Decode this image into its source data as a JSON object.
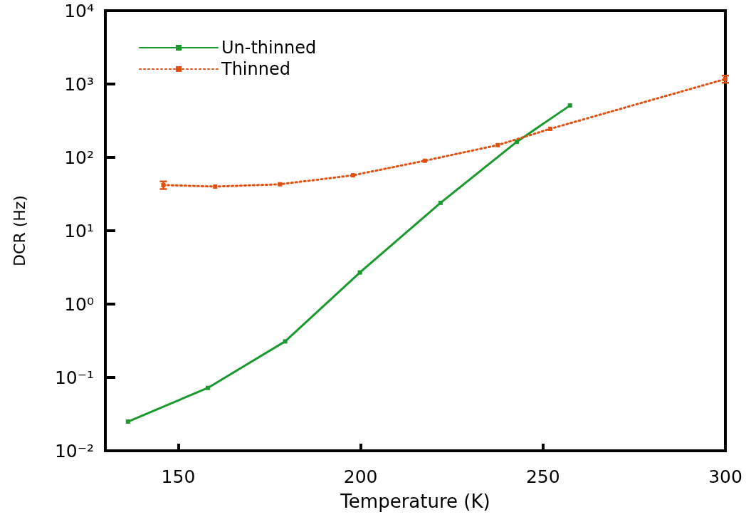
{
  "chart_data": {
    "type": "line",
    "xlabel": "Temperature (K)",
    "ylabel": "DCR (Hz)",
    "xlim": [
      130,
      300
    ],
    "xticks": [
      150,
      200,
      250,
      300
    ],
    "ylim": [
      0.01,
      10000
    ],
    "yticks": [
      {
        "value": 0.01,
        "label": "10⁻²"
      },
      {
        "value": 0.1,
        "label": "10⁻¹"
      },
      {
        "value": 1,
        "label": "10⁰"
      },
      {
        "value": 10,
        "label": "10¹"
      },
      {
        "value": 100,
        "label": "10²"
      },
      {
        "value": 1000,
        "label": "10³"
      },
      {
        "value": 10000,
        "label": "10⁴"
      }
    ],
    "log": "y",
    "grid": false,
    "legend": "top left",
    "marker": "square",
    "series": [
      {
        "name": "Un-thinned",
        "color": "#1a9a2e",
        "line_style": "solid",
        "x": [
          136.2,
          158.1,
          179.3,
          199.8,
          221.9,
          242.8,
          257.4
        ],
        "values": [
          0.025,
          0.072,
          0.31,
          2.7,
          24,
          163,
          510
        ]
      },
      {
        "name": "Thinned",
        "color": "#e05010",
        "line_style": "dotted",
        "x": [
          145.9,
          160.1,
          177.9,
          197.9,
          217.6,
          237.6,
          252,
          300
        ],
        "values": [
          42,
          40,
          43,
          57,
          90,
          147,
          245,
          1170
        ],
        "errors": [
          5,
          null,
          null,
          null,
          null,
          null,
          null,
          130
        ]
      }
    ]
  }
}
